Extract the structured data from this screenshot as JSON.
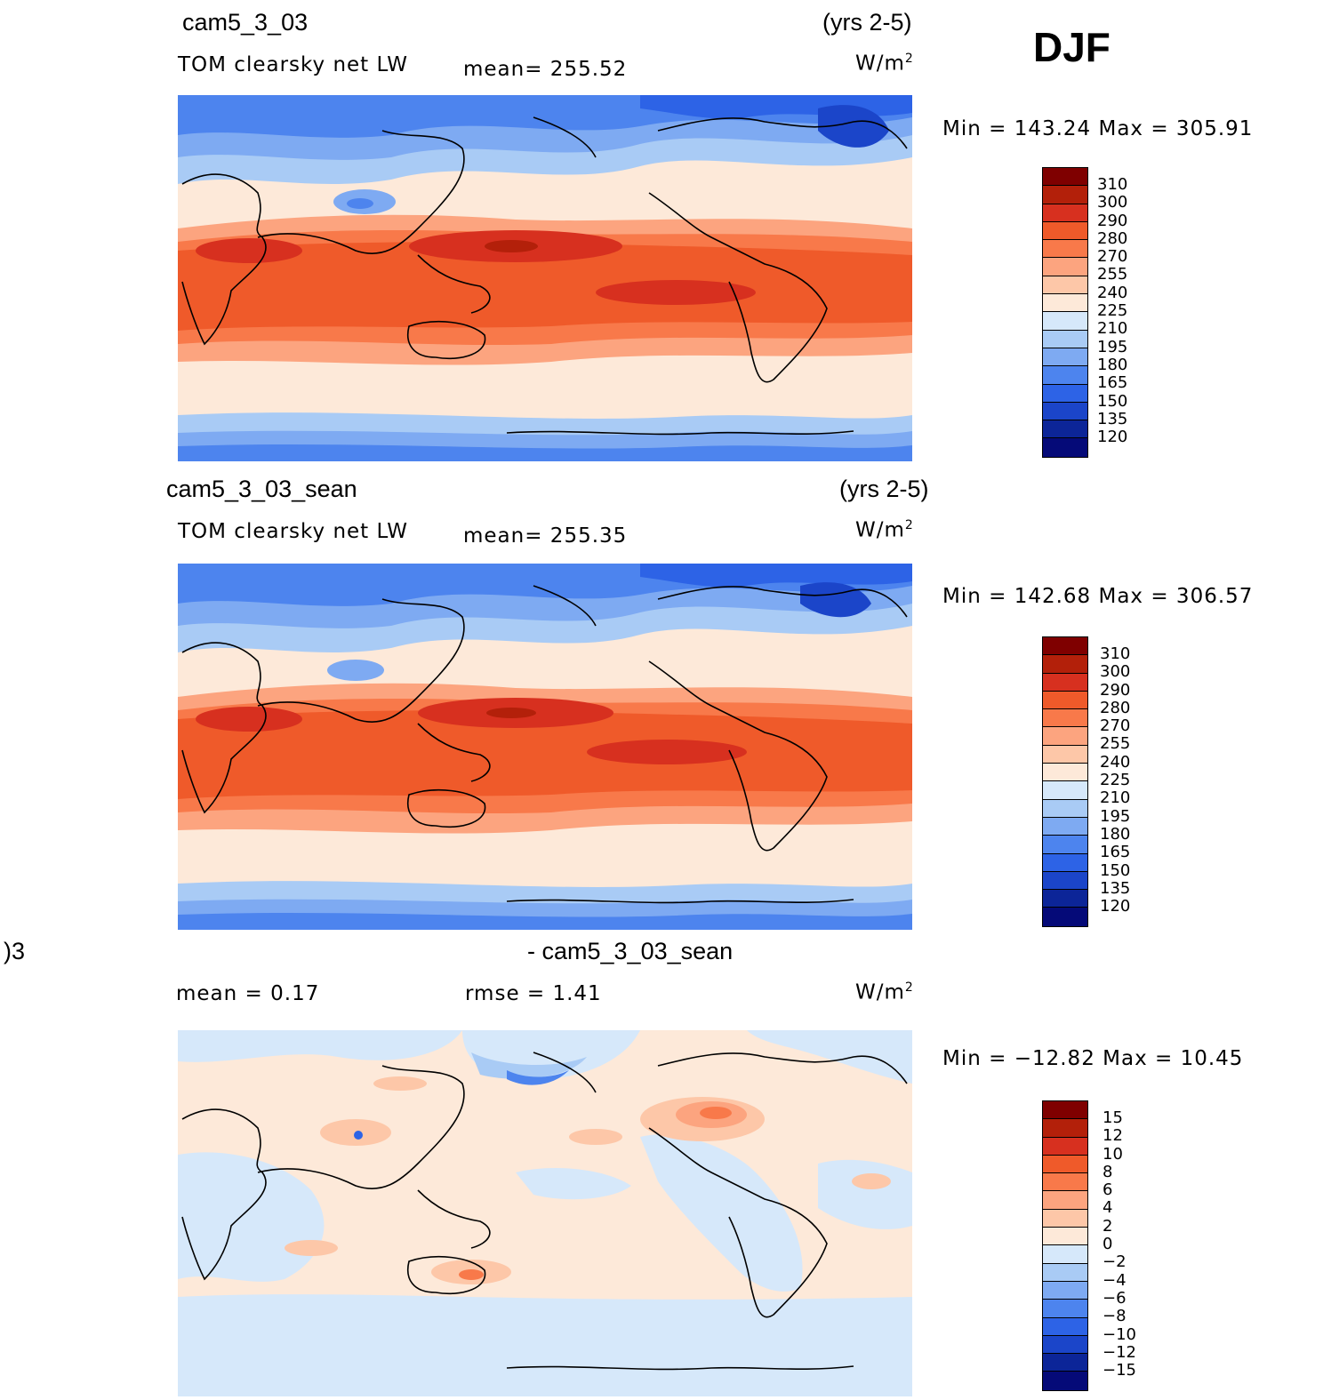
{
  "season": "DJF",
  "chart_data": [
    {
      "type": "heatmap",
      "case": "cam5_3_03",
      "years": "(yrs 2-5)",
      "variable": "TOM clearsky net LW",
      "mean_label": "mean= 255.52",
      "units": "W/m",
      "units_exp": "2",
      "minmax": "Min  =  143.24  Max  =  305.91",
      "min": 143.24,
      "max": 305.91,
      "levels": [
        "310",
        "300",
        "290",
        "280",
        "270",
        "255",
        "240",
        "225",
        "210",
        "195",
        "180",
        "165",
        "150",
        "135",
        "120"
      ],
      "colors": [
        "#7f0000",
        "#b3200a",
        "#d7301f",
        "#ef5a2a",
        "#f8794a",
        "#fca47f",
        "#fdc7a8",
        "#fde9d9",
        "#d6e8fa",
        "#a9cbf5",
        "#7eaaf2",
        "#4d84ee",
        "#2d63e6",
        "#1b45c9",
        "#0c2598",
        "#050a78"
      ]
    },
    {
      "type": "heatmap",
      "case": "cam5_3_03_sean",
      "years": "(yrs 2-5)",
      "variable": "TOM clearsky net LW",
      "mean_label": "mean= 255.35",
      "units": "W/m",
      "units_exp": "2",
      "minmax": "Min  =  142.68  Max  =  306.57",
      "min": 142.68,
      "max": 306.57,
      "levels": [
        "310",
        "300",
        "290",
        "280",
        "270",
        "255",
        "240",
        "225",
        "210",
        "195",
        "180",
        "165",
        "150",
        "135",
        "120"
      ],
      "colors": [
        "#7f0000",
        "#b3200a",
        "#d7301f",
        "#ef5a2a",
        "#f8794a",
        "#fca47f",
        "#fdc7a8",
        "#fde9d9",
        "#d6e8fa",
        "#a9cbf5",
        "#7eaaf2",
        "#4d84ee",
        "#2d63e6",
        "#1b45c9",
        "#0c2598",
        "#050a78"
      ]
    },
    {
      "type": "heatmap",
      "case_left": ")3",
      "case": "- cam5_3_03_sean",
      "mean_label": "mean =     0.17",
      "rmse_label": "rmse =     1.41",
      "units": "W/m",
      "units_exp": "2",
      "minmax": "Min  =  −12.82  Max  =     10.45",
      "min": -12.82,
      "max": 10.45,
      "mean": 0.17,
      "rmse": 1.41,
      "levels": [
        "15",
        "12",
        "10",
        "8",
        "6",
        "4",
        "2",
        "0",
        "−2",
        "−4",
        "−6",
        "−8",
        "−10",
        "−12",
        "−15"
      ],
      "colors": [
        "#7f0000",
        "#b3200a",
        "#d7301f",
        "#ef5a2a",
        "#f8794a",
        "#fca47f",
        "#fdc7a8",
        "#fde9d9",
        "#d6e8fa",
        "#a9cbf5",
        "#7eaaf2",
        "#4d84ee",
        "#2d63e6",
        "#1b45c9",
        "#0c2598",
        "#050a78"
      ]
    }
  ]
}
